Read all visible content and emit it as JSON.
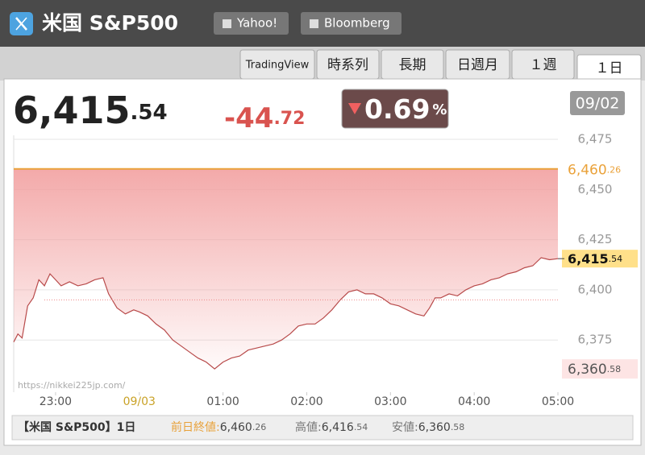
{
  "header": {
    "title": "米国 S&P500",
    "links": [
      "Yahoo!",
      "Bloomberg"
    ]
  },
  "tabs": [
    "TradingView",
    "時系列",
    "長期",
    "日週月",
    "１週",
    "１日"
  ],
  "quote": {
    "price": "6,415",
    "price_decimals": ".54",
    "change": "-44",
    "change_decimals": ".72",
    "percent": "0.69",
    "percent_unit": "%",
    "date": "09/02"
  },
  "chart_data": {
    "type": "line",
    "color": "#b84a4a",
    "area_color": "#f2a0a0",
    "x": [
      1350,
      1353,
      1356,
      1360,
      1364,
      1368,
      1372,
      1376,
      1380,
      1384,
      1390,
      1396,
      1402,
      1408,
      1414,
      1418,
      1424,
      1430,
      1436,
      1440,
      1446,
      1452,
      1458,
      1464,
      1470,
      1476,
      1482,
      1488,
      1494,
      1500,
      1506,
      1512,
      1518,
      1524,
      1530,
      1536,
      1542,
      1548,
      1554,
      1560,
      1566,
      1572,
      1578,
      1584,
      1590,
      1596,
      1602,
      1608,
      1614,
      1620,
      1626,
      1632,
      1638,
      1644,
      1648,
      1652,
      1656,
      1662,
      1668,
      1674,
      1680,
      1686,
      1692,
      1698,
      1704,
      1710,
      1716,
      1722,
      1728,
      1734,
      1740
    ],
    "values": [
      6374,
      6378,
      6376,
      6392,
      6396,
      6405,
      6402,
      6408,
      6405,
      6402,
      6404,
      6402,
      6403,
      6405,
      6406,
      6398,
      6391,
      6388,
      6390,
      6389,
      6387,
      6383,
      6380,
      6375,
      6372,
      6369,
      6366,
      6364,
      6360.58,
      6364,
      6366,
      6367,
      6370,
      6371,
      6372,
      6373,
      6375,
      6378,
      6382,
      6383,
      6383,
      6386,
      6390,
      6395,
      6399,
      6400,
      6398,
      6398,
      6396,
      6393,
      6392,
      6390,
      6388,
      6387,
      6391,
      6396,
      6396,
      6398,
      6397,
      6400,
      6402,
      6403,
      6405,
      6406,
      6408,
      6409,
      6411,
      6412,
      6416,
      6415,
      6415.54
    ],
    "xlim": [
      1350,
      1740
    ],
    "xticks": [
      {
        "value": 1380,
        "label": "23:00"
      },
      {
        "value": 1440,
        "label": "09/03"
      },
      {
        "value": 1500,
        "label": "01:00"
      },
      {
        "value": 1560,
        "label": "02:00"
      },
      {
        "value": 1620,
        "label": "03:00"
      },
      {
        "value": 1680,
        "label": "04:00"
      },
      {
        "value": 1740,
        "label": "05:00"
      }
    ],
    "ylim": [
      6349,
      6477
    ],
    "yticks": [
      {
        "value": 6375,
        "label": "6,375"
      },
      {
        "value": 6400,
        "label": "6,400"
      },
      {
        "value": 6425,
        "label": "6,425"
      },
      {
        "value": 6450,
        "label": "6,450"
      },
      {
        "value": 6475,
        "label": "6,475"
      }
    ],
    "grid": true,
    "prev_close": {
      "value": 6460.26,
      "label": "6,460",
      "label_decimals": ".26",
      "color": "#eaa23a"
    },
    "last": {
      "label": "6,415",
      "label_decimals": ".54"
    },
    "low": {
      "value": 6360.58,
      "label": "6,360",
      "label_decimals": ".58"
    },
    "reference_line": 6395,
    "watermark": "https://nikkei225jp.com/"
  },
  "footer": {
    "name": "【米国 S&P500】1日",
    "prev_label": "前日終値:",
    "prev": "6,460",
    "prev_decimals": ".26",
    "high_label": "高値:",
    "high": "6,416",
    "high_decimals": ".54",
    "low_label": "安値:",
    "low": "6,360",
    "low_decimals": ".58"
  }
}
